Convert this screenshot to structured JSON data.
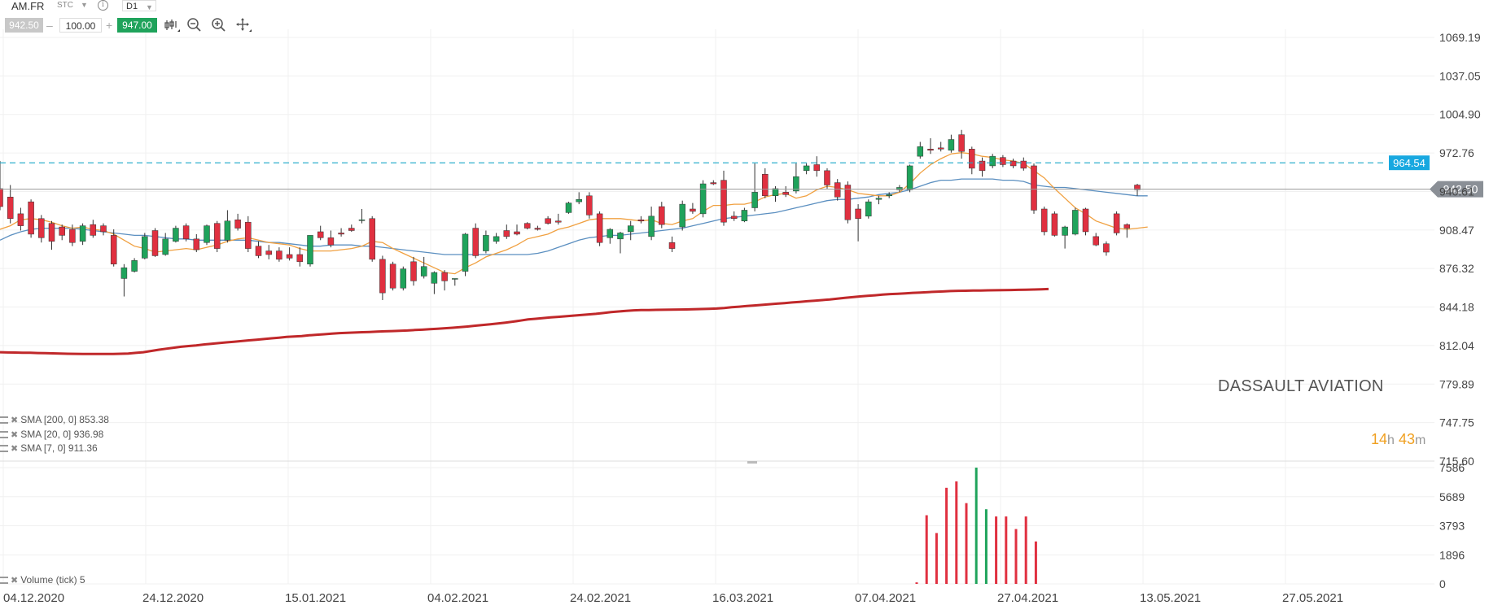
{
  "toolbar": {
    "symbol": "AM.FR",
    "market": "STC",
    "timeframe": "D1",
    "bid": "942.50",
    "quantity": "100.00",
    "ask": "947.00",
    "minus": "–",
    "plus": "+"
  },
  "instrument_name": "DASSAULT AVIATION",
  "timer": {
    "hours": "14",
    "h_unit": "h",
    "minutes": "43",
    "m_unit": "m"
  },
  "indicators": [
    {
      "label": "SMA [200, 0] 853.38"
    },
    {
      "label": "SMA [20, 0] 936.98"
    },
    {
      "label": "SMA [7, 0] 911.36"
    }
  ],
  "volume_label": "Volume (tick) 5",
  "colors": {
    "up": "#1fa35b",
    "down": "#e03040",
    "sma200": "#c0282a",
    "sma20": "#5b8fc0",
    "sma7": "#f0a040",
    "level": "#18a8c8",
    "level_tag": "#18a8e0",
    "price_tag": "#8a8f96"
  },
  "chart_data": {
    "type": "candlestick",
    "price_axis_ticks": [
      "1069.19",
      "1037.05",
      "1004.90",
      "972.76",
      "940.61",
      "908.47",
      "876.32",
      "844.18",
      "812.04",
      "779.89",
      "747.75",
      "715.60"
    ],
    "price_ylim": [
      715.6,
      1069.19
    ],
    "volume_axis_ticks": [
      "7586",
      "5689",
      "3793",
      "1896",
      "0"
    ],
    "volume_ylim": [
      0,
      7586
    ],
    "x_tick_labels": [
      "04.12.2020",
      "24.12.2020",
      "15.01.2021",
      "04.02.2021",
      "24.02.2021",
      "16.03.2021",
      "07.04.2021",
      "27.04.2021",
      "13.05.2021",
      "27.05.2021"
    ],
    "current_price": {
      "value": 942.5,
      "label": "942.50"
    },
    "level_line": {
      "value": 964.54,
      "label": "964.54"
    },
    "candles": [
      {
        "o": 943,
        "h": 966,
        "c": 928,
        "l": 925
      },
      {
        "o": 936,
        "h": 946,
        "c": 918,
        "l": 914
      },
      {
        "o": 922,
        "h": 927,
        "c": 912,
        "l": 908
      },
      {
        "o": 932,
        "h": 934,
        "c": 905,
        "l": 902
      },
      {
        "o": 918,
        "h": 921,
        "c": 902,
        "l": 898
      },
      {
        "o": 914,
        "h": 916,
        "c": 899,
        "l": 892
      },
      {
        "o": 911,
        "h": 913,
        "c": 904,
        "l": 900
      },
      {
        "o": 909,
        "h": 913,
        "c": 898,
        "l": 895
      },
      {
        "o": 899,
        "h": 914,
        "c": 912,
        "l": 896
      },
      {
        "o": 913,
        "h": 917,
        "c": 904,
        "l": 902
      },
      {
        "o": 912,
        "h": 914,
        "c": 907,
        "l": 904
      },
      {
        "o": 904,
        "h": 909,
        "c": 880,
        "l": 878
      },
      {
        "o": 868,
        "h": 880,
        "c": 877,
        "l": 853
      },
      {
        "o": 874,
        "h": 885,
        "c": 883,
        "l": 873
      },
      {
        "o": 885,
        "h": 906,
        "c": 903,
        "l": 884
      },
      {
        "o": 908,
        "h": 910,
        "c": 887,
        "l": 886
      },
      {
        "o": 888,
        "h": 906,
        "c": 901,
        "l": 887
      },
      {
        "o": 899,
        "h": 912,
        "c": 910,
        "l": 898
      },
      {
        "o": 912,
        "h": 914,
        "c": 901,
        "l": 899
      },
      {
        "o": 901,
        "h": 905,
        "c": 892,
        "l": 890
      },
      {
        "o": 898,
        "h": 913,
        "c": 912,
        "l": 896
      },
      {
        "o": 914,
        "h": 916,
        "c": 893,
        "l": 890
      },
      {
        "o": 900,
        "h": 925,
        "c": 916,
        "l": 898
      },
      {
        "o": 917,
        "h": 922,
        "c": 910,
        "l": 908
      },
      {
        "o": 915,
        "h": 920,
        "c": 893,
        "l": 890
      },
      {
        "o": 895,
        "h": 899,
        "c": 887,
        "l": 885
      },
      {
        "o": 891,
        "h": 896,
        "c": 888,
        "l": 884
      },
      {
        "o": 891,
        "h": 894,
        "c": 884,
        "l": 882
      },
      {
        "o": 888,
        "h": 894,
        "c": 885,
        "l": 883
      },
      {
        "o": 888,
        "h": 894,
        "c": 882,
        "l": 878
      },
      {
        "o": 880,
        "h": 904,
        "c": 904,
        "l": 878
      },
      {
        "o": 907,
        "h": 912,
        "c": 902,
        "l": 900
      },
      {
        "o": 902,
        "h": 908,
        "c": 896,
        "l": 894
      },
      {
        "o": 906,
        "h": 910,
        "c": 905,
        "l": 903
      },
      {
        "o": 910,
        "h": 913,
        "c": 908,
        "l": 907
      },
      {
        "o": 917,
        "h": 926,
        "c": 917,
        "l": 914
      },
      {
        "o": 918,
        "h": 920,
        "c": 884,
        "l": 882
      },
      {
        "o": 884,
        "h": 887,
        "c": 856,
        "l": 850
      },
      {
        "o": 880,
        "h": 882,
        "c": 860,
        "l": 858
      },
      {
        "o": 860,
        "h": 878,
        "c": 876,
        "l": 858
      },
      {
        "o": 882,
        "h": 886,
        "c": 866,
        "l": 862
      },
      {
        "o": 870,
        "h": 886,
        "c": 878,
        "l": 868
      },
      {
        "o": 864,
        "h": 874,
        "c": 873,
        "l": 855
      },
      {
        "o": 873,
        "h": 875,
        "c": 866,
        "l": 858
      },
      {
        "o": 868,
        "h": 868,
        "c": 868,
        "l": 862
      },
      {
        "o": 874,
        "h": 906,
        "c": 905,
        "l": 870
      },
      {
        "o": 910,
        "h": 914,
        "c": 887,
        "l": 885
      },
      {
        "o": 891,
        "h": 908,
        "c": 904,
        "l": 889
      },
      {
        "o": 899,
        "h": 906,
        "c": 903,
        "l": 897
      },
      {
        "o": 908,
        "h": 913,
        "c": 903,
        "l": 901
      },
      {
        "o": 907,
        "h": 913,
        "c": 905,
        "l": 904
      },
      {
        "o": 914,
        "h": 915,
        "c": 910,
        "l": 909
      },
      {
        "o": 910,
        "h": 912,
        "c": 909,
        "l": 908
      },
      {
        "o": 918,
        "h": 920,
        "c": 914,
        "l": 913
      },
      {
        "o": 916,
        "h": 922,
        "c": 915,
        "l": 913
      },
      {
        "o": 923,
        "h": 932,
        "c": 931,
        "l": 922
      },
      {
        "o": 932,
        "h": 940,
        "c": 934,
        "l": 930
      },
      {
        "o": 937,
        "h": 940,
        "c": 921,
        "l": 918
      },
      {
        "o": 922,
        "h": 924,
        "c": 898,
        "l": 895
      },
      {
        "o": 902,
        "h": 910,
        "c": 909,
        "l": 897
      },
      {
        "o": 901,
        "h": 907,
        "c": 906,
        "l": 889
      },
      {
        "o": 907,
        "h": 916,
        "c": 912,
        "l": 900
      },
      {
        "o": 917,
        "h": 920,
        "c": 916,
        "l": 914
      },
      {
        "o": 903,
        "h": 928,
        "c": 920,
        "l": 900
      },
      {
        "o": 928,
        "h": 932,
        "c": 913,
        "l": 910
      },
      {
        "o": 898,
        "h": 903,
        "c": 893,
        "l": 890
      },
      {
        "o": 911,
        "h": 933,
        "c": 930,
        "l": 908
      },
      {
        "o": 926,
        "h": 931,
        "c": 924,
        "l": 922
      },
      {
        "o": 922,
        "h": 950,
        "c": 947,
        "l": 919
      },
      {
        "o": 948,
        "h": 950,
        "c": 947,
        "l": 946
      },
      {
        "o": 950,
        "h": 958,
        "c": 915,
        "l": 912
      },
      {
        "o": 920,
        "h": 924,
        "c": 918,
        "l": 916
      },
      {
        "o": 916,
        "h": 927,
        "c": 925,
        "l": 915
      },
      {
        "o": 927,
        "h": 964,
        "c": 940,
        "l": 924
      },
      {
        "o": 955,
        "h": 960,
        "c": 937,
        "l": 935
      },
      {
        "o": 937,
        "h": 945,
        "c": 943,
        "l": 932
      },
      {
        "o": 940,
        "h": 945,
        "c": 938,
        "l": 936
      },
      {
        "o": 941,
        "h": 964,
        "c": 953,
        "l": 939
      },
      {
        "o": 958,
        "h": 964,
        "c": 962,
        "l": 955
      },
      {
        "o": 963,
        "h": 970,
        "c": 958,
        "l": 953
      },
      {
        "o": 958,
        "h": 960,
        "c": 946,
        "l": 943
      },
      {
        "o": 948,
        "h": 951,
        "c": 936,
        "l": 933
      },
      {
        "o": 946,
        "h": 949,
        "c": 917,
        "l": 914
      },
      {
        "o": 926,
        "h": 930,
        "c": 918,
        "l": 899
      },
      {
        "o": 920,
        "h": 934,
        "c": 932,
        "l": 918
      },
      {
        "o": 934,
        "h": 937,
        "c": 935,
        "l": 930
      },
      {
        "o": 937,
        "h": 940,
        "c": 938,
        "l": 935
      },
      {
        "o": 942,
        "h": 946,
        "c": 944,
        "l": 940
      },
      {
        "o": 942,
        "h": 963,
        "c": 962,
        "l": 940
      },
      {
        "o": 970,
        "h": 982,
        "c": 978,
        "l": 968
      },
      {
        "o": 976,
        "h": 985,
        "c": 975,
        "l": 972
      },
      {
        "o": 977,
        "h": 982,
        "c": 976,
        "l": 974
      },
      {
        "o": 975,
        "h": 988,
        "c": 984,
        "l": 973
      },
      {
        "o": 988,
        "h": 992,
        "c": 974,
        "l": 968
      },
      {
        "o": 976,
        "h": 978,
        "c": 960,
        "l": 955
      },
      {
        "o": 966,
        "h": 969,
        "c": 958,
        "l": 953
      },
      {
        "o": 962,
        "h": 972,
        "c": 970,
        "l": 960
      },
      {
        "o": 969,
        "h": 971,
        "c": 963,
        "l": 961
      },
      {
        "o": 966,
        "h": 968,
        "c": 962,
        "l": 960
      },
      {
        "o": 966,
        "h": 969,
        "c": 960,
        "l": 958
      },
      {
        "o": 962,
        "h": 964,
        "c": 925,
        "l": 922
      },
      {
        "o": 926,
        "h": 928,
        "c": 907,
        "l": 904
      },
      {
        "o": 922,
        "h": 924,
        "c": 904,
        "l": 903
      },
      {
        "o": 904,
        "h": 912,
        "c": 911,
        "l": 893
      },
      {
        "o": 905,
        "h": 927,
        "c": 925,
        "l": 904
      },
      {
        "o": 926,
        "h": 927,
        "c": 907,
        "l": 904
      },
      {
        "o": 903,
        "h": 906,
        "c": 896,
        "l": 895
      },
      {
        "o": 897,
        "h": 899,
        "c": 890,
        "l": 887
      },
      {
        "o": 922,
        "h": 924,
        "c": 906,
        "l": 904
      },
      {
        "o": 913,
        "h": 914,
        "c": 910,
        "l": 902
      },
      {
        "o": 946,
        "h": 947,
        "c": 942,
        "l": 937
      }
    ],
    "sma7": [
      909,
      912,
      917,
      918,
      917,
      915,
      912,
      910,
      911,
      909,
      908,
      905,
      900,
      895,
      893,
      890,
      891,
      892,
      893,
      892,
      894,
      896,
      899,
      901,
      902,
      900,
      898,
      897,
      896,
      893,
      891,
      891,
      891,
      892,
      893,
      895,
      899,
      898,
      893,
      889,
      885,
      881,
      877,
      873,
      872,
      877,
      881,
      886,
      889,
      892,
      896,
      901,
      903,
      905,
      909,
      911,
      914,
      917,
      918,
      918,
      918,
      917,
      916,
      917,
      914,
      913,
      916,
      918,
      924,
      929,
      929,
      930,
      930,
      932,
      936,
      938,
      939,
      935,
      937,
      942,
      945,
      944,
      942,
      939,
      938,
      937,
      937,
      940,
      947,
      956,
      963,
      968,
      972,
      973,
      972,
      970,
      969,
      967,
      966,
      964,
      958,
      952,
      943,
      935,
      927,
      922,
      916,
      913,
      910,
      909,
      910,
      911
    ],
    "sma20": [
      900,
      904,
      907,
      909,
      910,
      910,
      910,
      910,
      909,
      908,
      907,
      906,
      905,
      904,
      904,
      903,
      902,
      901,
      901,
      900,
      900,
      900,
      900,
      900,
      900,
      899,
      898,
      898,
      897,
      896,
      895,
      895,
      896,
      896,
      896,
      895,
      895,
      894,
      893,
      892,
      891,
      890,
      889,
      888,
      888,
      888,
      888,
      888,
      888,
      888,
      888,
      888,
      889,
      891,
      894,
      897,
      900,
      902,
      903,
      904,
      904,
      905,
      906,
      907,
      908,
      909,
      910,
      912,
      914,
      916,
      918,
      919,
      920,
      921,
      922,
      923,
      925,
      927,
      929,
      931,
      933,
      934,
      934,
      935,
      936,
      938,
      939,
      940,
      942,
      945,
      948,
      950,
      950,
      951,
      951,
      951,
      951,
      950,
      950,
      949,
      946,
      945,
      944,
      944,
      943,
      942,
      941,
      940,
      939,
      938,
      937,
      937
    ],
    "sma200": [
      806.5,
      806.3,
      806.2,
      806.1,
      806.0,
      805.8,
      805.7,
      805.5,
      805.3,
      805.2,
      805.1,
      805.0,
      805.0,
      805.0,
      805.0,
      805.0,
      805.2,
      805.4,
      805.9,
      806.5,
      807.5,
      808.5,
      809.4,
      810.2,
      811.0,
      811.6,
      812.2,
      812.9,
      813.5,
      814.1,
      814.7,
      815.2,
      815.8,
      816.4,
      816.9,
      817.5,
      818.1,
      818.6,
      819.2,
      819.6,
      820.0,
      820.6,
      821.1,
      821.5,
      822.0,
      822.4,
      822.7,
      822.9,
      823.2,
      823.4,
      823.7,
      823.9,
      824.1,
      824.3,
      824.6,
      825.0,
      825.3,
      825.7,
      826.1,
      826.5,
      826.9,
      827.4,
      827.9,
      828.6,
      829.2,
      829.8,
      830.5,
      831.2,
      832.0,
      832.9,
      833.8,
      834.4,
      835.0,
      835.5,
      836.0,
      836.5,
      837.0,
      837.5,
      838.0,
      838.5,
      839.2,
      840.0,
      840.5,
      841.0,
      841.4,
      841.6,
      841.7,
      841.8,
      841.9,
      842.0,
      842.1,
      842.2,
      842.3,
      842.5,
      842.7,
      842.9,
      843.4,
      844.0,
      844.5,
      845.0,
      845.5,
      846.0,
      846.5,
      847.0,
      847.5,
      848.0,
      848.5,
      849.0,
      849.5,
      850.0,
      850.5,
      851.2,
      851.8,
      852.4,
      853.0,
      853.5,
      854.0,
      854.5,
      855.0,
      855.3,
      855.6,
      856.0,
      856.3,
      856.6,
      856.9,
      857.2,
      857.5,
      857.7,
      857.8,
      858.0,
      858.0,
      858.1,
      858.2,
      858.3,
      858.4,
      858.5,
      858.6,
      858.8,
      859.0,
      859.2
    ],
    "volume": [
      {
        "v": 100,
        "dir": "down"
      },
      {
        "v": 4480,
        "dir": "down"
      },
      {
        "v": 3320,
        "dir": "down"
      },
      {
        "v": 6270,
        "dir": "down"
      },
      {
        "v": 6690,
        "dir": "down"
      },
      {
        "v": 5270,
        "dir": "down"
      },
      {
        "v": 7586,
        "dir": "up"
      },
      {
        "v": 4870,
        "dir": "up"
      },
      {
        "v": 4400,
        "dir": "down"
      },
      {
        "v": 4400,
        "dir": "down"
      },
      {
        "v": 3580,
        "dir": "down"
      },
      {
        "v": 4400,
        "dir": "down"
      },
      {
        "v": 2770,
        "dir": "down"
      }
    ]
  }
}
